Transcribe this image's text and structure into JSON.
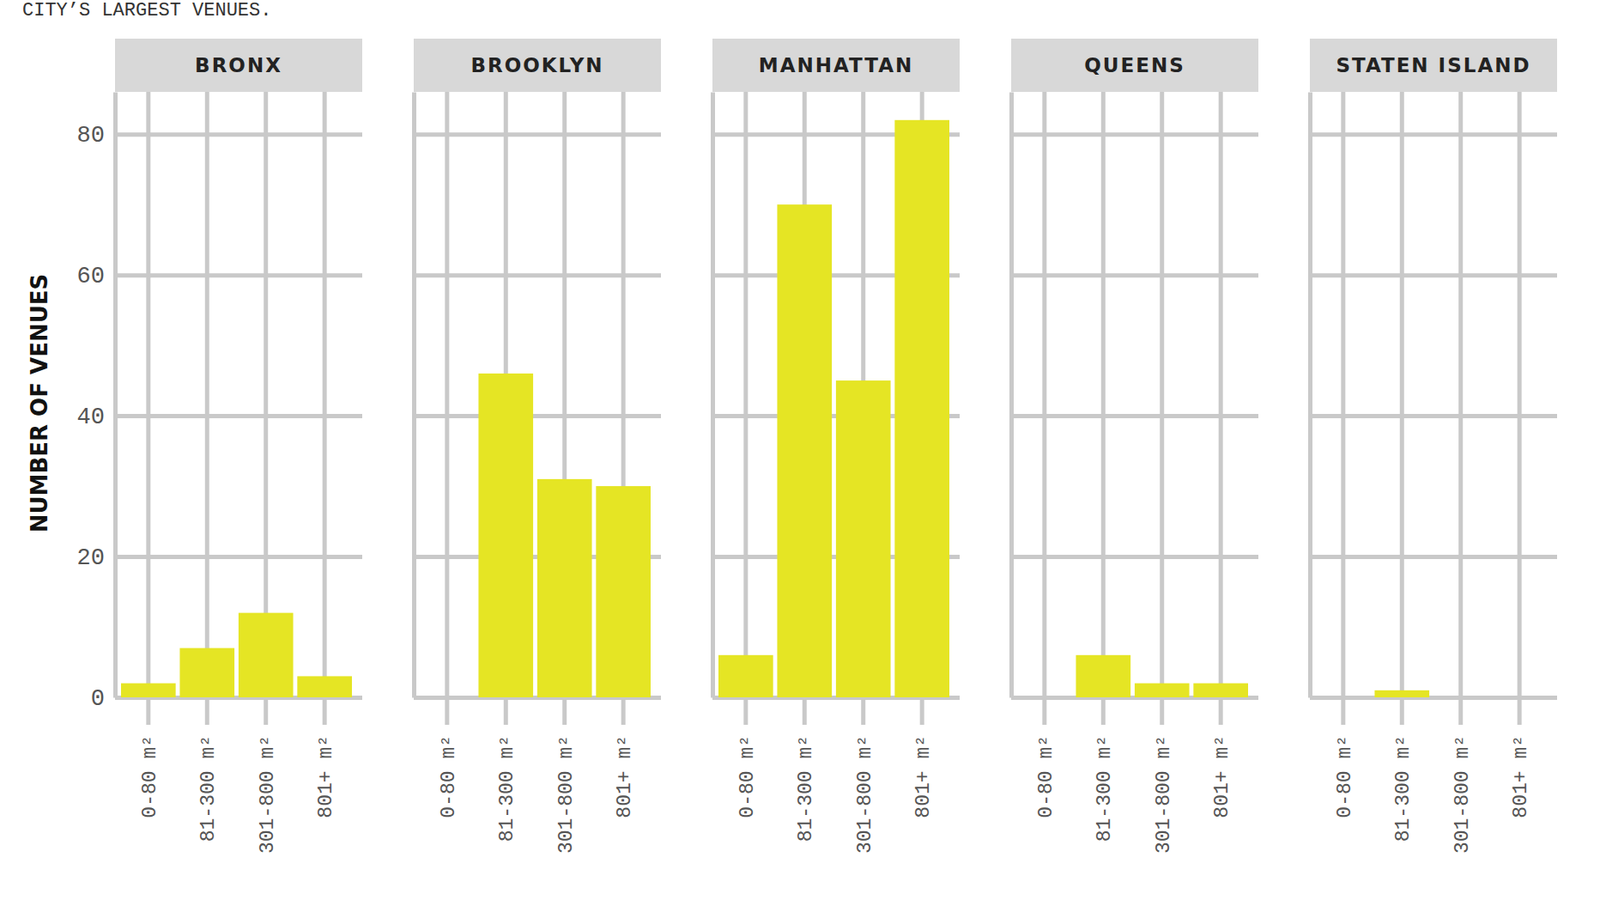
{
  "title": "CITY’S LARGEST VENUES.",
  "chart_data": [
    {
      "type": "bar",
      "title": "BRONX",
      "y_label": "NUMBER OF VENUES",
      "categories": [
        "0-80 m²",
        "81-300 m²",
        "301-800 m²",
        "801+ m²"
      ],
      "values": [
        2,
        7,
        12,
        3
      ],
      "color": "#e5e524",
      "ylim": [
        0,
        86
      ],
      "yticks": [
        0,
        20,
        40,
        60,
        80
      ],
      "grid": true,
      "tick_labels": true
    },
    {
      "type": "bar",
      "title": "BROOKLYN",
      "categories": [
        "0-80 m²",
        "81-300 m²",
        "301-800 m²",
        "801+ m²"
      ],
      "values": [
        0,
        46,
        31,
        30
      ],
      "color": "#e5e524",
      "ylim": [
        0,
        86
      ],
      "yticks": [
        0,
        20,
        40,
        60,
        80
      ],
      "grid": true,
      "tick_labels": "x"
    },
    {
      "type": "bar",
      "title": "MANHATTAN",
      "categories": [
        "0-80 m²",
        "81-300 m²",
        "301-800 m²",
        "801+ m²"
      ],
      "values": [
        6,
        70,
        45,
        82
      ],
      "color": "#e5e524",
      "ylim": [
        0,
        86
      ],
      "yticks": [
        0,
        20,
        40,
        60,
        80
      ],
      "grid": true,
      "tick_labels": "x"
    },
    {
      "type": "bar",
      "title": "QUEENS",
      "categories": [
        "0-80 m²",
        "81-300 m²",
        "301-800 m²",
        "801+ m²"
      ],
      "values": [
        0,
        6,
        2,
        2
      ],
      "color": "#e5e524",
      "ylim": [
        0,
        86
      ],
      "yticks": [
        0,
        20,
        40,
        60,
        80
      ],
      "grid": true,
      "tick_labels": "x"
    },
    {
      "type": "bar",
      "title": "STATEN ISLAND",
      "categories": [
        "0-80 m²",
        "81-300 m²",
        "301-800 m²",
        "801+ m²"
      ],
      "values": [
        0,
        1,
        0,
        0
      ],
      "color": "#e5e524",
      "ylim": [
        0,
        86
      ],
      "yticks": [
        0,
        20,
        40,
        60,
        80
      ],
      "grid": true,
      "tick_labels": "x"
    }
  ]
}
